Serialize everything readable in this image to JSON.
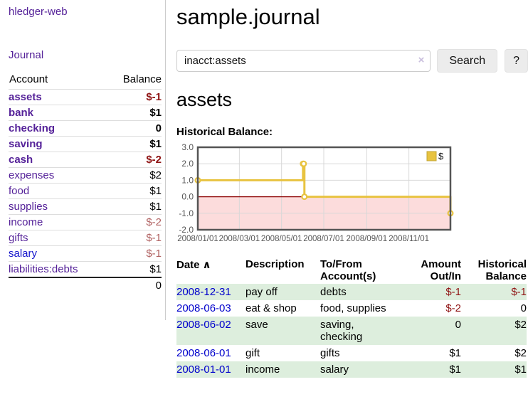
{
  "app": {
    "title": "hledger-web",
    "journal_link": "Journal"
  },
  "sidebar": {
    "columns": {
      "account": "Account",
      "balance": "Balance"
    },
    "accounts": [
      {
        "name": "assets",
        "depth": 1,
        "bold": true,
        "blue": false,
        "balance": "$-1",
        "balance_class": "neg-strong"
      },
      {
        "name": "bank",
        "depth": 2,
        "bold": true,
        "blue": false,
        "balance": "$1",
        "balance_class": "bold"
      },
      {
        "name": "checking",
        "depth": 3,
        "bold": true,
        "blue": false,
        "balance": "0",
        "balance_class": "bold"
      },
      {
        "name": "saving",
        "depth": 3,
        "bold": true,
        "blue": false,
        "balance": "$1",
        "balance_class": "bold"
      },
      {
        "name": "cash",
        "depth": 2,
        "bold": true,
        "blue": false,
        "balance": "$-2",
        "balance_class": "neg-strong"
      },
      {
        "name": "expenses",
        "depth": 1,
        "bold": false,
        "blue": false,
        "balance": "$2",
        "balance_class": ""
      },
      {
        "name": "food",
        "depth": 2,
        "bold": false,
        "blue": false,
        "balance": "$1",
        "balance_class": ""
      },
      {
        "name": "supplies",
        "depth": 2,
        "bold": false,
        "blue": false,
        "balance": "$1",
        "balance_class": ""
      },
      {
        "name": "income",
        "depth": 1,
        "bold": false,
        "blue": false,
        "balance": "$-2",
        "balance_class": "neg-soft"
      },
      {
        "name": "gifts",
        "depth": 2,
        "bold": false,
        "blue": false,
        "balance": "$-1",
        "balance_class": "neg-soft"
      },
      {
        "name": "salary",
        "depth": 2,
        "bold": false,
        "blue": true,
        "balance": "$-1",
        "balance_class": "neg-soft"
      },
      {
        "name": "liabilities:debts",
        "depth": 1,
        "bold": false,
        "blue": false,
        "balance": "$1",
        "balance_class": ""
      }
    ],
    "total": "0"
  },
  "header": {
    "title": "sample.journal"
  },
  "search": {
    "value": "inacct:assets",
    "clear_icon": "×",
    "button_label": "Search",
    "help_label": "?"
  },
  "account_page": {
    "heading": "assets",
    "chart_label": "Historical Balance:"
  },
  "chart_data": {
    "type": "line",
    "step": true,
    "title": "Historical Balance",
    "series": [
      {
        "name": "$",
        "color": "#E8C340",
        "points": [
          [
            "2008-01-01",
            1
          ],
          [
            "2008-06-01",
            2
          ],
          [
            "2008-06-02",
            2
          ],
          [
            "2008-06-03",
            0
          ],
          [
            "2008-12-31",
            -1
          ]
        ]
      }
    ],
    "x_ticks": [
      {
        "label": "2008/01/01",
        "date": "2008-01-01"
      },
      {
        "label": "2008/03/01",
        "date": "2008-03-01"
      },
      {
        "label": "2008/05/01",
        "date": "2008-05-01"
      },
      {
        "label": "2008/07/01",
        "date": "2008-07-01"
      },
      {
        "label": "2008/09/01",
        "date": "2008-09-01"
      },
      {
        "label": "2008/11/01",
        "date": "2008-11-01"
      }
    ],
    "y_ticks": [
      3,
      2,
      1,
      0,
      -1,
      -2
    ],
    "ylim": [
      -2,
      3
    ],
    "xlim": [
      "2008-01-01",
      "2008-12-31"
    ],
    "grid": true,
    "legend_position": "top-right",
    "negative_region_color": "#fcdcdc",
    "zero_line_color": "#8b0000",
    "grid_color": "#d8d8d8",
    "border_color": "#545454"
  },
  "register": {
    "columns": [
      "Date",
      "Description",
      "To/From\nAccount(s)",
      "Amount\nOut/In",
      "Historical\nBalance"
    ],
    "sort_icon": "∧",
    "rows": [
      {
        "date": "2008-12-31",
        "description": "pay off",
        "accounts": "debts",
        "amount": "$-1",
        "amount_neg": true,
        "balance": "$-1",
        "balance_neg": true,
        "green": true
      },
      {
        "date": "2008-06-03",
        "description": "eat & shop",
        "accounts": "food, supplies",
        "amount": "$-2",
        "amount_neg": true,
        "balance": "0",
        "balance_neg": false,
        "green": false
      },
      {
        "date": "2008-06-02",
        "description": "save",
        "accounts": "saving,\nchecking",
        "amount": "0",
        "amount_neg": false,
        "balance": "$2",
        "balance_neg": false,
        "green": true
      },
      {
        "date": "2008-06-01",
        "description": "gift",
        "accounts": "gifts",
        "amount": "$1",
        "amount_neg": false,
        "balance": "$2",
        "balance_neg": false,
        "green": false
      },
      {
        "date": "2008-01-01",
        "description": "income",
        "accounts": "salary",
        "amount": "$1",
        "amount_neg": false,
        "balance": "$1",
        "balance_neg": false,
        "green": true
      }
    ]
  }
}
